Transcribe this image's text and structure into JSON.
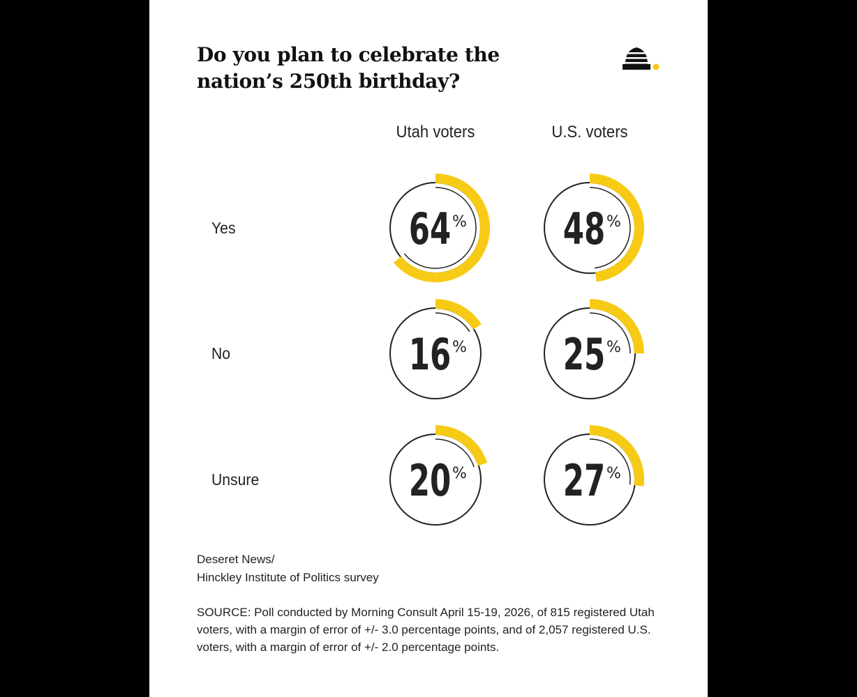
{
  "title": "Do you plan to celebrate the nation’s 250th birthday?",
  "credit": {
    "line1": "Deseret News/",
    "line2": "Hinckley Institute of Politics survey"
  },
  "source": "SOURCE: Poll conducted by Morning Consult April 15-19, 2026, of 815 registered Utah voters, with a margin of error of +/- 3.0 percentage points, and of 2,057 registered U.S.  voters, with a margin of error of +/- 2.0 percentage points.",
  "colors": {
    "accent": "#F7CB15",
    "ink": "#222222",
    "background": "#FFFFFF",
    "frame": "#000000"
  },
  "logo": {
    "icon": "beehive-icon"
  },
  "chart_data": {
    "type": "radial-progress",
    "columns": [
      "Utah voters",
      "U.S. voters"
    ],
    "rows": [
      "Yes",
      "No",
      "Unsure"
    ],
    "unit": "%",
    "series": [
      {
        "name": "Utah voters",
        "values": [
          64,
          16,
          20
        ]
      },
      {
        "name": "U.S. voters",
        "values": [
          48,
          25,
          27
        ]
      }
    ]
  }
}
